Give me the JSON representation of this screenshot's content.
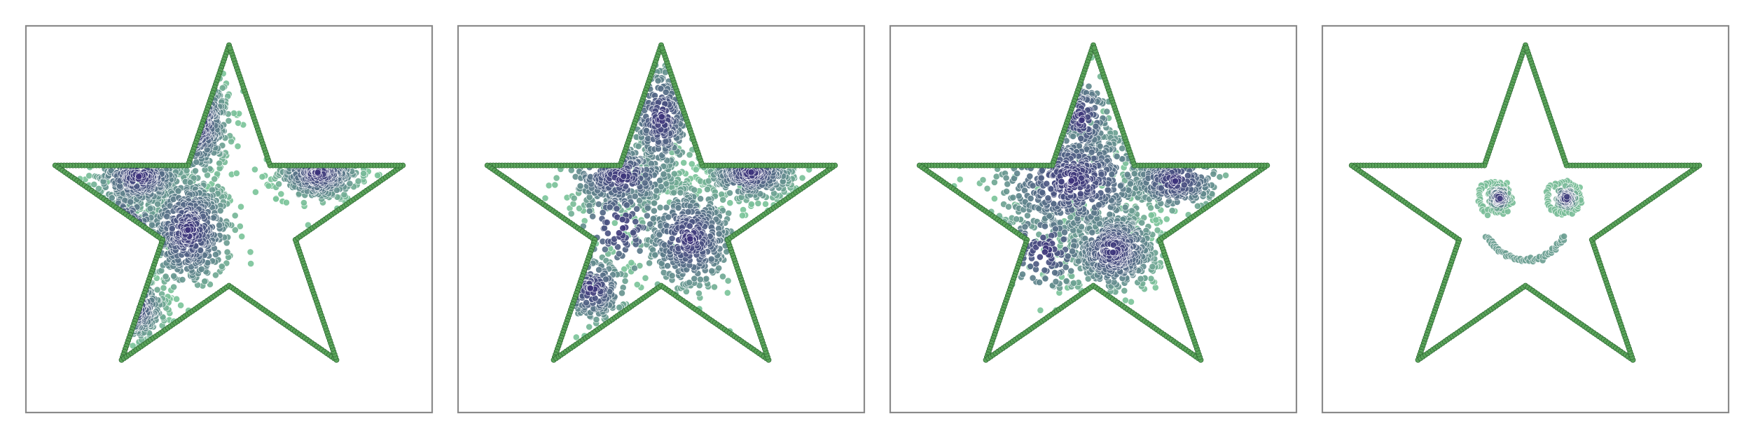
{
  "figure": {
    "panel_count": 4
  },
  "chart_data": [
    {
      "type": "scatter",
      "xlim": [
        0,
        100
      ],
      "ylim": [
        0,
        100
      ],
      "grid": false,
      "legend": "none",
      "axes_ticks": "none",
      "outline": {
        "shape": "five-point-star",
        "color": "#5aa35a",
        "edge_color": "#2f6b34"
      },
      "series": [
        {
          "colormap": "viridis-like",
          "light_color": "#7cc49a",
          "dark_color": "#3b2f7a",
          "clusters": [
            {
              "x": 40,
              "y": 47,
              "sx": 5.5,
              "sy": 7.5,
              "n": 520
            },
            {
              "x": 72,
              "y": 62,
              "sx": 5.0,
              "sy": 3.5,
              "n": 320
            },
            {
              "x": 28,
              "y": 61,
              "sx": 5.5,
              "sy": 4.0,
              "n": 300
            },
            {
              "x": 42,
              "y": 75,
              "sx": 4.0,
              "sy": 7.0,
              "n": 230
            },
            {
              "x": 26,
              "y": 27,
              "sx": 4.0,
              "sy": 4.0,
              "n": 160
            },
            {
              "x": 24,
              "y": 47,
              "sx": 5.0,
              "sy": 6.0,
              "n": 60
            }
          ]
        }
      ]
    },
    {
      "type": "scatter",
      "xlim": [
        0,
        100
      ],
      "ylim": [
        0,
        100
      ],
      "grid": false,
      "legend": "none",
      "axes_ticks": "none",
      "outline": {
        "shape": "five-point-star",
        "color": "#5aa35a",
        "edge_color": "#2f6b34"
      },
      "series": [
        {
          "colormap": "viridis-like",
          "light_color": "#7cc49a",
          "dark_color": "#3b2f7a",
          "clusters": [
            {
              "x": 57,
              "y": 45,
              "sx": 6.0,
              "sy": 7.0,
              "n": 440
            },
            {
              "x": 72,
              "y": 62,
              "sx": 5.5,
              "sy": 3.5,
              "n": 300
            },
            {
              "x": 40,
              "y": 61,
              "sx": 7.0,
              "sy": 4.5,
              "n": 300
            },
            {
              "x": 50,
              "y": 76,
              "sx": 4.0,
              "sy": 7.5,
              "n": 260
            },
            {
              "x": 33,
              "y": 32,
              "sx": 4.5,
              "sy": 4.5,
              "n": 170
            },
            {
              "x": 40,
              "y": 48,
              "sx": 6.0,
              "sy": 7.0,
              "n": 110
            }
          ]
        }
      ]
    },
    {
      "type": "scatter",
      "xlim": [
        0,
        100
      ],
      "ylim": [
        0,
        100
      ],
      "grid": false,
      "legend": "none",
      "axes_ticks": "none",
      "outline": {
        "shape": "five-point-star",
        "color": "#5aa35a",
        "edge_color": "#2f6b34"
      },
      "series": [
        {
          "colormap": "viridis-like",
          "light_color": "#7cc49a",
          "dark_color": "#3b2f7a",
          "clusters": [
            {
              "x": 55,
              "y": 42,
              "sx": 5.5,
              "sy": 5.5,
              "n": 520
            },
            {
              "x": 45,
              "y": 60,
              "sx": 10.0,
              "sy": 8.0,
              "n": 600
            },
            {
              "x": 70,
              "y": 60,
              "sx": 6.0,
              "sy": 4.0,
              "n": 240
            },
            {
              "x": 47,
              "y": 76,
              "sx": 4.0,
              "sy": 6.0,
              "n": 150
            },
            {
              "x": 38,
              "y": 42,
              "sx": 6.0,
              "sy": 6.0,
              "n": 140
            }
          ]
        }
      ]
    },
    {
      "type": "scatter",
      "xlim": [
        0,
        100
      ],
      "ylim": [
        0,
        100
      ],
      "grid": false,
      "legend": "none",
      "axes_ticks": "none",
      "outline": {
        "shape": "five-point-star",
        "color": "#5aa35a",
        "edge_color": "#2f6b34"
      },
      "series": [
        {
          "colormap": "viridis-like",
          "light_color": "#7cc49a",
          "dark_color": "#3b2f7a",
          "clusters": [
            {
              "x": 43.5,
              "y": 55.5,
              "sx": 1.2,
              "sy": 1.4,
              "n": 110
            },
            {
              "x": 60.0,
              "y": 55.5,
              "sx": 1.2,
              "sy": 1.4,
              "n": 110
            }
          ],
          "rings": [
            {
              "x": 42.5,
              "y": 55.5,
              "r": 4.0,
              "n": 45
            },
            {
              "x": 59.5,
              "y": 55.5,
              "r": 4.0,
              "n": 45
            }
          ],
          "smile": {
            "x": 50,
            "y": 50,
            "r": 10.5,
            "angle_from": 205,
            "angle_to": 335,
            "n": 55
          }
        }
      ]
    }
  ]
}
